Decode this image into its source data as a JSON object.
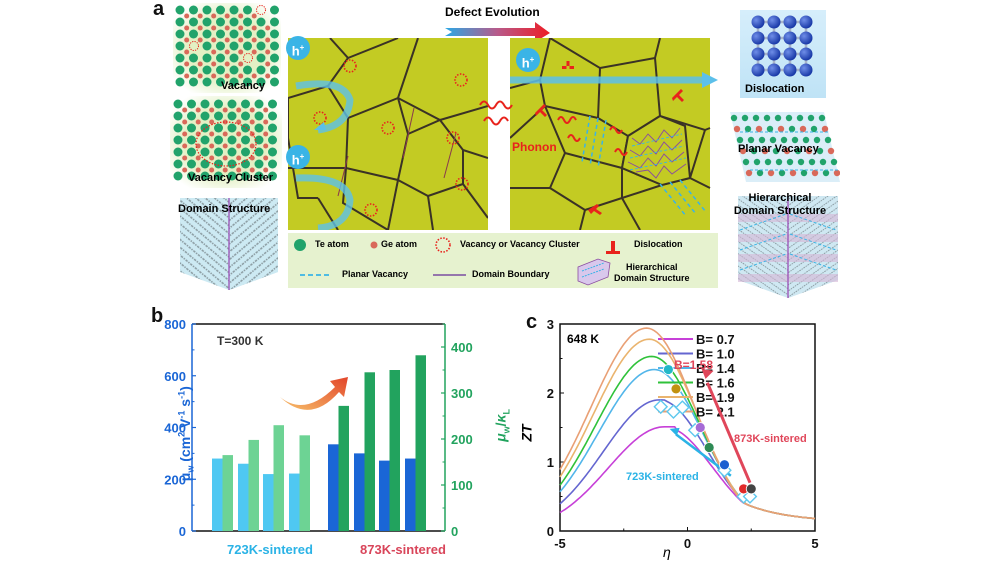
{
  "panel_a": {
    "letter": "a",
    "left_insets": [
      {
        "label": "Vacancy"
      },
      {
        "label": "Vacancy Cluster"
      },
      {
        "label": "Domain Structure"
      }
    ],
    "right_insets": [
      {
        "label": "Dislocation"
      },
      {
        "label": "Planar Vacancy"
      },
      {
        "label_line1": "Hierarchical",
        "label_line2": "Domain Structure"
      }
    ],
    "evolution_label": "Defect Evolution",
    "hole_label": "h",
    "hole_sup": "+",
    "phonon_label": "Phonon",
    "legend": {
      "te_atom": "Te atom",
      "ge_atom": "Ge atom",
      "vacancy": "Vacancy or Vacancy Cluster",
      "dislocation": "Dislocation",
      "planar_vacancy": "Planar Vacancy",
      "domain_boundary": "Domain Boundary",
      "hierarchical_line1": "Hierarchical",
      "hierarchical_line2": "Domain Structure"
    },
    "colors": {
      "grain": "#c3cb23",
      "grain_boundary": "#3a3226",
      "te": "#21a36b",
      "ge": "#d9695a",
      "hole": "#3ab4e6",
      "defect_red": "#e8231c",
      "legend_bg": "#e6f2cf"
    }
  },
  "chart_data": [
    {
      "panel": "b",
      "type": "bar",
      "title": "",
      "annotation": "T=300 K",
      "groups": [
        {
          "label": "723K-sintered",
          "label_color": "#2bb3e6",
          "mu_w": [
            280,
            260,
            220,
            222
          ],
          "mu_w_over_kappa_L": [
            165,
            198,
            230,
            208
          ]
        },
        {
          "label": "873K-sintered",
          "label_color": "#d9455a",
          "mu_w": [
            335,
            300,
            272,
            280
          ],
          "mu_w_over_kappa_L": [
            272,
            345,
            350,
            382
          ]
        }
      ],
      "ylabel_left": "μw (cm2 V-1 s-1)",
      "ylabel_left_parts": {
        "mu": "μ",
        "sub": "w",
        "unit": "(cm",
        "sup2": "2",
        "v": " V",
        "supm1": "-1",
        "s": " s",
        "supm1b": "-1",
        "close": ")"
      },
      "ylabel_right": "μw/κL",
      "ylabel_right_parts": {
        "mu": "μ",
        "sub_w": "w",
        "slash": "/",
        "kappa": "κ",
        "sub_L": "L"
      },
      "ylim_left": [
        0,
        800
      ],
      "ylim_right": [
        0,
        450
      ],
      "yticks_left": [
        "0",
        "200",
        "400",
        "600",
        "800"
      ],
      "yticks_right": [
        "0",
        "100",
        "200",
        "300",
        "400"
      ],
      "series_colors": {
        "723_mu": "#4fc8f2",
        "723_ratio": "#6dd394",
        "873_mu": "#1a66d6",
        "873_ratio": "#22a35e"
      }
    },
    {
      "panel": "c",
      "type": "line",
      "annotation": "648 K",
      "xlabel": "η",
      "ylabel": "ZT",
      "xlim": [
        -5,
        5
      ],
      "ylim": [
        0,
        3
      ],
      "xticks": [
        "-5",
        "0",
        "5"
      ],
      "yticks": [
        "0",
        "1",
        "2",
        "3"
      ],
      "series": [
        {
          "name": "B= 0.7",
          "B": 0.7,
          "peak_eta": -0.9,
          "peak_zt": 1.51,
          "color": "#c740d8"
        },
        {
          "name": "B= 1.0",
          "B": 1.0,
          "peak_eta": -1.1,
          "peak_zt": 1.9,
          "color": "#6466d0"
        },
        {
          "name": "B= 1.4",
          "B": 1.4,
          "peak_eta": -1.3,
          "peak_zt": 2.34,
          "color": "#52b6ea"
        },
        {
          "name": "B= 1.6",
          "B": 1.6,
          "peak_eta": -1.4,
          "peak_zt": 2.53,
          "color": "#2fc23a"
        },
        {
          "name": "B= 1.9",
          "B": 1.9,
          "peak_eta": -1.5,
          "peak_zt": 2.78,
          "color": "#eab46e"
        },
        {
          "name": "B= 2.1",
          "B": 2.1,
          "peak_eta": -1.6,
          "peak_zt": 2.94,
          "color": "#e9a075"
        }
      ],
      "points_873K": [
        {
          "eta": -0.75,
          "zt": 2.34,
          "color": "#22b8c8"
        },
        {
          "eta": -0.45,
          "zt": 2.06,
          "color": "#c29210"
        },
        {
          "eta": 0.5,
          "zt": 1.5,
          "color": "#a66ad6"
        },
        {
          "eta": 0.85,
          "zt": 1.21,
          "color": "#2e8a55"
        },
        {
          "eta": 1.45,
          "zt": 0.96,
          "color": "#1a5fd0"
        },
        {
          "eta": 2.2,
          "zt": 0.61,
          "color": "#e02a2a"
        },
        {
          "eta": 2.5,
          "zt": 0.61,
          "color": "#444444"
        }
      ],
      "points_723K": [
        {
          "eta": -1.05,
          "zt": 1.8
        },
        {
          "eta": -0.55,
          "zt": 1.73
        },
        {
          "eta": -0.2,
          "zt": 1.79
        },
        {
          "eta": 0.3,
          "zt": 1.46
        },
        {
          "eta": 1.45,
          "zt": 0.88
        },
        {
          "eta": 2.2,
          "zt": 0.5
        },
        {
          "eta": 2.45,
          "zt": 0.5
        }
      ],
      "annotations": {
        "b_value": "B=1.58",
        "label_873": "873K-sintered",
        "label_723": "723K-sintered",
        "color_873": "#e0465a",
        "color_723": "#2bb3e6"
      }
    }
  ],
  "panel_b_letter": "b",
  "panel_c_letter": "c"
}
